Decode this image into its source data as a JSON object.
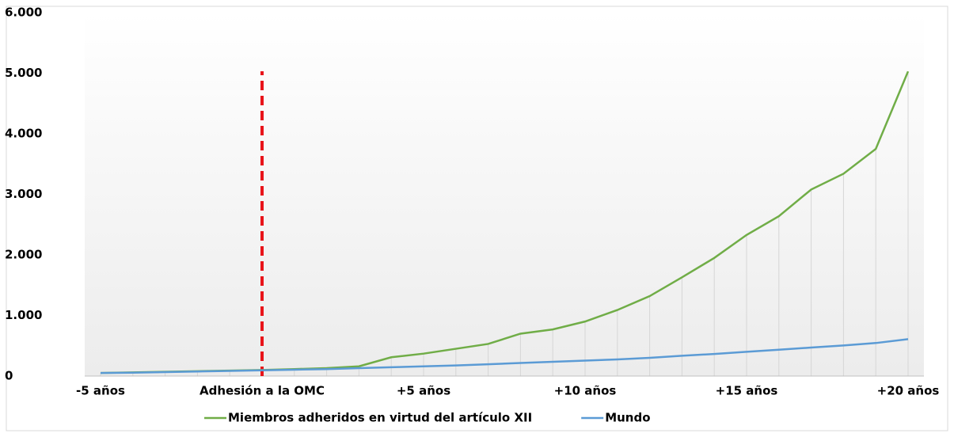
{
  "chart_data": {
    "type": "line",
    "categories": [
      "-5 años",
      null,
      null,
      null,
      null,
      "Adhesión a la OMC",
      null,
      null,
      null,
      null,
      "+5 años",
      null,
      null,
      null,
      null,
      "+10 años",
      null,
      null,
      null,
      null,
      "+15 años",
      null,
      null,
      null,
      null,
      "+20 años"
    ],
    "series": [
      {
        "name": "Miembros adheridos en virtud del artículo XII",
        "color": "#70ad47",
        "values": [
          50,
          60,
          70,
          80,
          90,
          100,
          115,
          130,
          160,
          310,
          370,
          450,
          530,
          700,
          770,
          900,
          1090,
          1320,
          1630,
          1950,
          2330,
          2640,
          3080,
          3340,
          3750,
          5030
        ]
      },
      {
        "name": "Mundo",
        "color": "#5b9bd5",
        "values": [
          50,
          55,
          65,
          75,
          85,
          95,
          105,
          115,
          130,
          145,
          160,
          175,
          195,
          215,
          235,
          255,
          275,
          300,
          335,
          365,
          400,
          435,
          470,
          505,
          545,
          610
        ]
      }
    ],
    "ylim": [
      0,
      6000
    ],
    "yticks": [
      0,
      {
        "value": 1000,
        "label": "1.000"
      },
      {
        "value": 2000,
        "label": "2.000"
      },
      {
        "value": 3000,
        "label": "3.000"
      },
      {
        "value": 4000,
        "label": "4.000"
      },
      {
        "value": 5000,
        "label": "5.000"
      },
      {
        "value": 6000,
        "label": "6.000"
      }
    ],
    "reference_x_index": 5,
    "reference_color": "#e8141a",
    "legend": "bottom"
  }
}
